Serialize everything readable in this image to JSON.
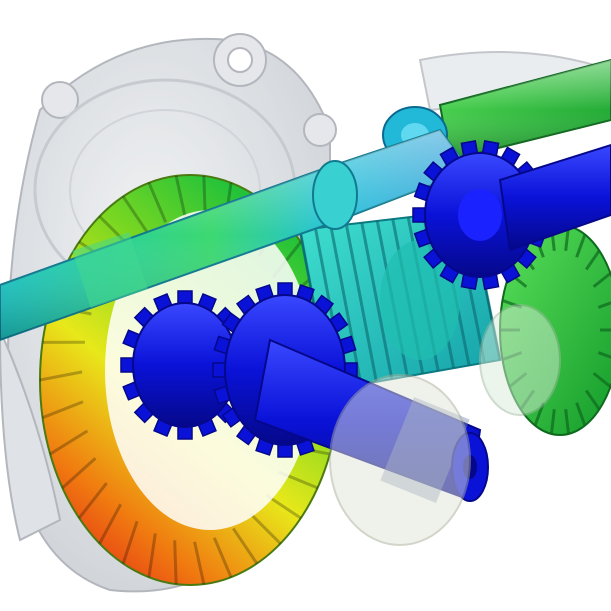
{
  "image": {
    "subject": "gear-assembly-stress-render",
    "colors": {
      "background": "#ffffff",
      "housing": "#cfd3d8",
      "housing_edge": "#9aa0a8",
      "blue": "#0a12d8",
      "blue_dark": "#05088a",
      "cyan": "#19c8d8",
      "green": "#22c23a",
      "yellow": "#e8e81a",
      "orange": "#f07a10",
      "red": "#e0101a"
    }
  }
}
